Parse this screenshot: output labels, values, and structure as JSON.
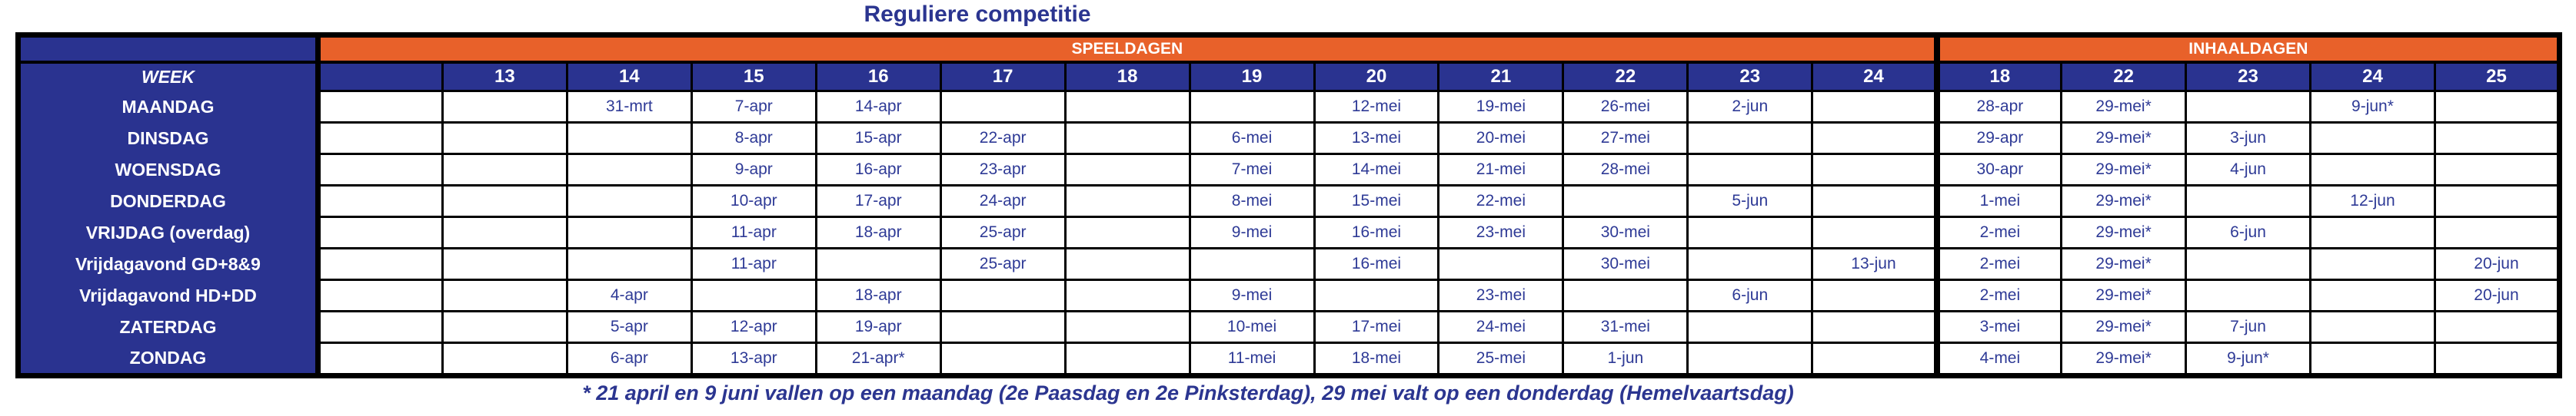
{
  "title": "Reguliere competitie",
  "footnote": "* 21 april en 9 juni vallen op een maandag (2e Paasdag en 2e Pinksterdag), 29 mei valt op een donderdag (Hemelvaartsdag)",
  "colors": {
    "band_orange": "#E8612A",
    "header_blue": "#2A3390",
    "date_text_blue": "#2E3A96",
    "title_blue": "#2B3590",
    "border_black": "#000000",
    "cell_white": "#FFFFFF"
  },
  "table": {
    "sections": {
      "speeldagen": "SPEELDAGEN",
      "inhaaldagen": "INHAALDAGEN"
    },
    "week_label": "WEEK",
    "week_numbers": [
      "",
      "13",
      "14",
      "15",
      "16",
      "17",
      "18",
      "19",
      "20",
      "21",
      "22",
      "23",
      "24",
      "18",
      "22",
      "23",
      "24",
      "25"
    ],
    "rows": [
      {
        "label": "MAANDAG",
        "cells": [
          "",
          "",
          "31-mrt",
          "7-apr",
          "14-apr",
          "",
          "",
          "",
          "12-mei",
          "19-mei",
          "26-mei",
          "2-jun",
          "",
          "28-apr",
          "29-mei*",
          "",
          "9-jun*",
          ""
        ]
      },
      {
        "label": "DINSDAG",
        "cells": [
          "",
          "",
          "",
          "8-apr",
          "15-apr",
          "22-apr",
          "",
          "6-mei",
          "13-mei",
          "20-mei",
          "27-mei",
          "",
          "",
          "29-apr",
          "29-mei*",
          "3-jun",
          "",
          ""
        ]
      },
      {
        "label": "WOENSDAG",
        "cells": [
          "",
          "",
          "",
          "9-apr",
          "16-apr",
          "23-apr",
          "",
          "7-mei",
          "14-mei",
          "21-mei",
          "28-mei",
          "",
          "",
          "30-apr",
          "29-mei*",
          "4-jun",
          "",
          ""
        ]
      },
      {
        "label": "DONDERDAG",
        "cells": [
          "",
          "",
          "",
          "10-apr",
          "17-apr",
          "24-apr",
          "",
          "8-mei",
          "15-mei",
          "22-mei",
          "",
          "5-jun",
          "",
          "1-mei",
          "29-mei*",
          "",
          "12-jun",
          ""
        ]
      },
      {
        "label": "VRIJDAG (overdag)",
        "cells": [
          "",
          "",
          "",
          "11-apr",
          "18-apr",
          "25-apr",
          "",
          "9-mei",
          "16-mei",
          "23-mei",
          "30-mei",
          "",
          "",
          "2-mei",
          "29-mei*",
          "6-jun",
          "",
          ""
        ]
      },
      {
        "label": "Vrijdagavond GD+8&9",
        "cells": [
          "",
          "",
          "",
          "11-apr",
          "",
          "25-apr",
          "",
          "",
          "16-mei",
          "",
          "30-mei",
          "",
          "13-jun",
          "2-mei",
          "29-mei*",
          "",
          "",
          "20-jun"
        ]
      },
      {
        "label": "Vrijdagavond HD+DD",
        "cells": [
          "",
          "",
          "4-apr",
          "",
          "18-apr",
          "",
          "",
          "9-mei",
          "",
          "23-mei",
          "",
          "6-jun",
          "",
          "2-mei",
          "29-mei*",
          "",
          "",
          "20-jun"
        ]
      },
      {
        "label": "ZATERDAG",
        "cells": [
          "",
          "",
          "5-apr",
          "12-apr",
          "19-apr",
          "",
          "",
          "10-mei",
          "17-mei",
          "24-mei",
          "31-mei",
          "",
          "",
          "3-mei",
          "29-mei*",
          "7-jun",
          "",
          ""
        ]
      },
      {
        "label": "ZONDAG",
        "cells": [
          "",
          "",
          "6-apr",
          "13-apr",
          "21-apr*",
          "",
          "",
          "11-mei",
          "18-mei",
          "25-mei",
          "1-jun",
          "",
          "",
          "4-mei",
          "29-mei*",
          "9-jun*",
          "",
          ""
        ]
      }
    ]
  }
}
